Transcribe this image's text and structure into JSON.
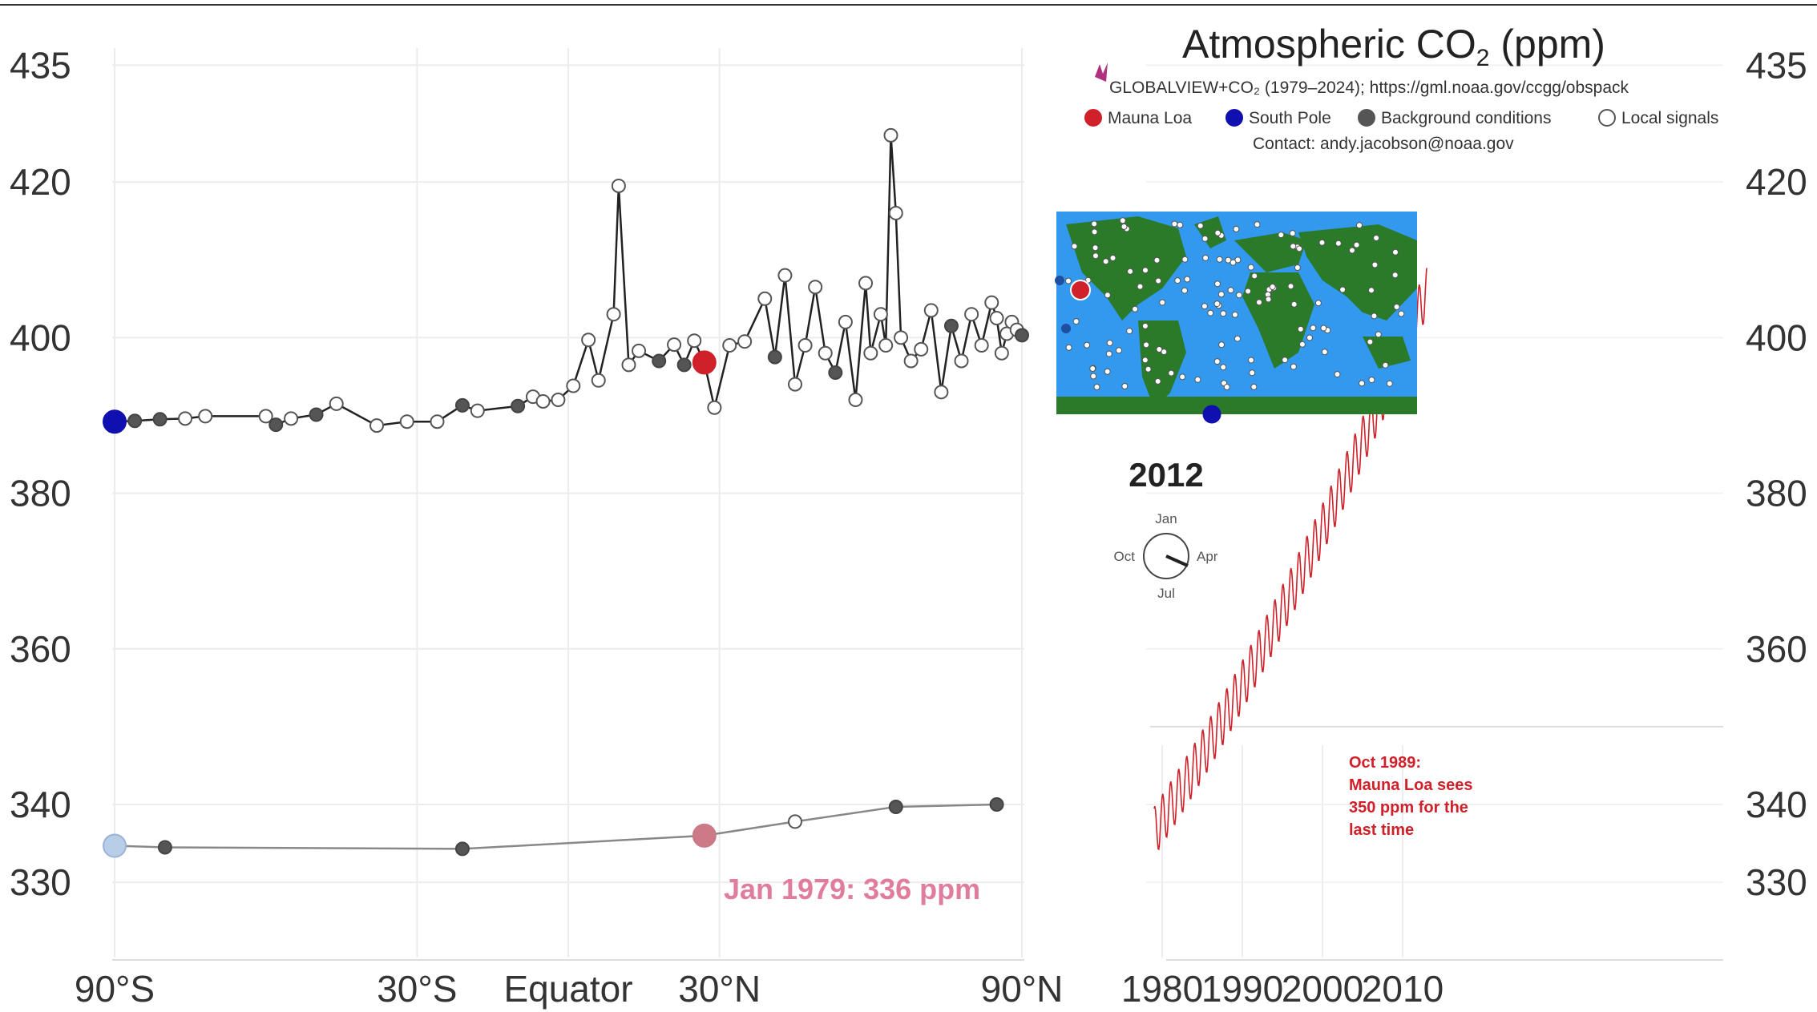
{
  "chart_data": [
    {
      "type": "line",
      "id": "latitude-profile",
      "title": "",
      "xlabel": "",
      "ylabel": "",
      "x_ticks": [
        {
          "lat": -90,
          "label": "90°S"
        },
        {
          "lat": -30,
          "label": "30°S"
        },
        {
          "lat": 0,
          "label": "Equator"
        },
        {
          "lat": 30,
          "label": "30°N"
        },
        {
          "lat": 90,
          "label": "90°N"
        }
      ],
      "xlim": [
        -90,
        90
      ],
      "y_ticks": [
        330,
        340,
        360,
        380,
        400,
        420,
        435
      ],
      "ylim": [
        326,
        437
      ],
      "grid": true,
      "series": [
        {
          "name": "2012",
          "color": "#222222",
          "points": [
            [
              -90,
              389.2,
              "south_pole"
            ],
            [
              -86,
              389.3,
              "bg"
            ],
            [
              -81,
              389.5,
              "bg"
            ],
            [
              -76,
              389.6,
              "local"
            ],
            [
              -72,
              389.9,
              "local"
            ],
            [
              -60,
              389.9,
              "local"
            ],
            [
              -58,
              388.8,
              "bg"
            ],
            [
              -55,
              389.6,
              "local"
            ],
            [
              -50,
              390.1,
              "bg"
            ],
            [
              -46,
              391.5,
              "local"
            ],
            [
              -38,
              388.7,
              "local"
            ],
            [
              -32,
              389.2,
              "local"
            ],
            [
              -26,
              389.2,
              "local"
            ],
            [
              -21,
              391.3,
              "bg"
            ],
            [
              -18,
              390.6,
              "local"
            ],
            [
              -10,
              391.2,
              "bg"
            ],
            [
              -7,
              392.4,
              "local"
            ],
            [
              -5,
              391.8,
              "local"
            ],
            [
              -2,
              392.0,
              "local"
            ],
            [
              1,
              393.8,
              "local"
            ],
            [
              4,
              399.7,
              "local"
            ],
            [
              6,
              394.5,
              "local"
            ],
            [
              9,
              403.0,
              "local"
            ],
            [
              10,
              419.5,
              "local"
            ],
            [
              12,
              396.5,
              "local"
            ],
            [
              14,
              398.3,
              "local"
            ],
            [
              18,
              397.0,
              "bg"
            ],
            [
              21,
              399.1,
              "local"
            ],
            [
              23,
              396.5,
              "bg"
            ],
            [
              25,
              399.6,
              "local"
            ],
            [
              27,
              396.8,
              "mauna_loa"
            ],
            [
              29,
              391.0,
              "local"
            ],
            [
              32,
              399.0,
              "local"
            ],
            [
              35,
              399.5,
              "local"
            ],
            [
              39,
              405.0,
              "local"
            ],
            [
              41,
              397.5,
              "bg"
            ],
            [
              43,
              408.0,
              "local"
            ],
            [
              45,
              394.0,
              "local"
            ],
            [
              47,
              399.0,
              "local"
            ],
            [
              49,
              406.5,
              "local"
            ],
            [
              51,
              398.0,
              "local"
            ],
            [
              53,
              395.5,
              "bg"
            ],
            [
              55,
              402.0,
              "local"
            ],
            [
              57,
              392.0,
              "local"
            ],
            [
              59,
              407.0,
              "local"
            ],
            [
              60,
              398.0,
              "local"
            ],
            [
              62,
              403.0,
              "local"
            ],
            [
              63,
              399.0,
              "local"
            ],
            [
              64,
              426.0,
              "local"
            ],
            [
              65,
              416.0,
              "local"
            ],
            [
              66,
              400.0,
              "local"
            ],
            [
              68,
              397.0,
              "local"
            ],
            [
              70,
              398.5,
              "local"
            ],
            [
              72,
              403.5,
              "local"
            ],
            [
              74,
              393.0,
              "local"
            ],
            [
              76,
              401.5,
              "bg"
            ],
            [
              78,
              397.0,
              "local"
            ],
            [
              80,
              403.0,
              "local"
            ],
            [
              82,
              399.0,
              "local"
            ],
            [
              84,
              404.5,
              "local"
            ],
            [
              85,
              402.5,
              "local"
            ],
            [
              86,
              398.0,
              "local"
            ],
            [
              87,
              400.5,
              "local"
            ],
            [
              88,
              402.0,
              "local"
            ],
            [
              89,
              401.0,
              "local"
            ],
            [
              90,
              400.3,
              "bg"
            ]
          ]
        },
        {
          "name": "Jan 1979",
          "color": "#888888",
          "points": [
            [
              -90,
              334.7,
              "south_pole_faded"
            ],
            [
              -80,
              334.5,
              "bg"
            ],
            [
              -21,
              334.3,
              "bg"
            ],
            [
              27,
              336.0,
              "mauna_loa_faded"
            ],
            [
              45,
              337.8,
              "local"
            ],
            [
              65,
              339.7,
              "bg"
            ],
            [
              85,
              340.0,
              "bg"
            ]
          ]
        }
      ],
      "annotation": "Jan 1979: 336 ppm"
    },
    {
      "type": "line",
      "id": "time-series",
      "title": "",
      "x_ticks": [
        1980,
        1990,
        2000,
        2010
      ],
      "xlim": [
        1978.5,
        2013.5
      ],
      "y_ticks": [
        330,
        340,
        360,
        380,
        400,
        420,
        435
      ],
      "ylim": [
        326,
        437
      ],
      "reference_line": 350,
      "series": [
        {
          "name": "Mauna Loa",
          "color": "#d0202a",
          "start_year": 1979,
          "end_year": 2013,
          "start_value": 336.5,
          "seasonal_amplitude": 3.2
        }
      ],
      "annotation": [
        "Oct 1989:",
        "Mauna Loa sees",
        "350 ppm for the",
        "last time"
      ]
    }
  ],
  "title_main": "Atmospheric CO",
  "title_sub": "2",
  "title_units": " (ppm)",
  "source_line": "GLOBALVIEW+CO₂ (1979–2024); https://gml.noaa.gov/ccgg/obspack",
  "contact": "Contact: andy.jacobson@noaa.gov",
  "legend": [
    {
      "label": "Mauna Loa",
      "color": "#d0202a",
      "fill": true
    },
    {
      "label": "South Pole",
      "color": "#1010b0",
      "fill": true
    },
    {
      "label": "Background conditions",
      "color": "#555555",
      "fill": true
    },
    {
      "label": "Local signals",
      "color": "#ffffff",
      "fill": false
    }
  ],
  "year": "2012",
  "month_dial": {
    "top": "Jan",
    "right": "Apr",
    "bottom": "Jul",
    "left": "Oct"
  },
  "colors": {
    "ocean": "#3399ee",
    "land": "#2a7a2a",
    "mauna_loa": "#d0202a",
    "south_pole": "#1010b0"
  }
}
